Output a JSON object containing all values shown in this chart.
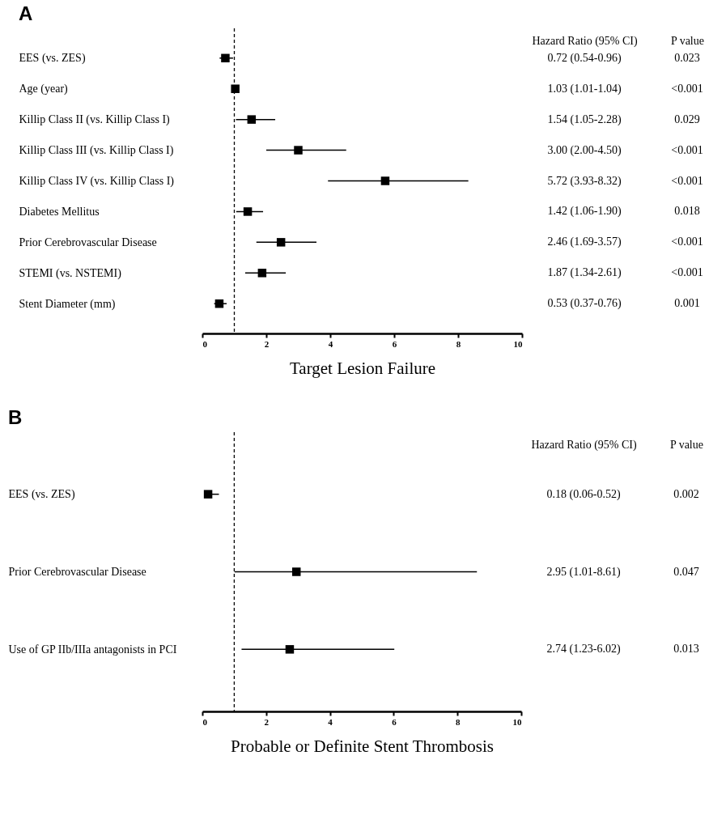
{
  "chart_data": [
    {
      "type": "scatter",
      "orientation": "horizontal",
      "title": "A",
      "xlabel": "Target Lesion Failure",
      "marker": "square",
      "grid": false,
      "categories": [
        "EES (vs. ZES)",
        "Age (year)",
        "Killip Class II (vs. Killip Class I)",
        "Killip Class III (vs. Killip Class I)",
        "Killip Class IV (vs. Killip Class I)",
        "Diabetes Mellitus",
        "Prior Cerebrovascular Disease",
        "STEMI (vs. NSTEMI)",
        "Stent Diameter (mm)"
      ],
      "series": [
        {
          "color": "#000000",
          "values": [
            0.72,
            1.03,
            1.54,
            3.0,
            5.72,
            1.42,
            2.46,
            1.87,
            0.53
          ],
          "errors": [
            [
              0.54,
              0.96
            ],
            null,
            [
              1.05,
              2.28
            ],
            [
              2.0,
              4.5
            ],
            [
              3.93,
              8.32
            ],
            [
              1.06,
              1.9
            ],
            [
              1.69,
              3.57
            ],
            [
              1.34,
              2.61
            ],
            [
              0.37,
              0.76
            ]
          ],
          "value_labels": [
            "0.72 (0.54-0.96)",
            "1.03 (1.01-1.04)",
            "1.54 (1.05-2.28)",
            "3.00 (2.00-4.50)",
            "5.72 (3.93-8.32)",
            "1.42 (1.06-1.90)",
            "2.46 (1.69-3.57)",
            "1.87 (1.34-2.61)",
            "0.53 (0.37-0.76)"
          ]
        }
      ],
      "xlim": [
        0,
        10
      ],
      "xticks": [
        0,
        2,
        4,
        6,
        8,
        10
      ],
      "ref_lines": [
        {
          "axis": "x",
          "value": 1,
          "color": "#000000",
          "line_style": "dashed"
        }
      ],
      "annotations": [
        "Hazard Ratio (95% CI)",
        "P value",
        "0.023",
        "<0.001",
        "0.029",
        "<0.001",
        "<0.001",
        "0.018",
        "<0.001",
        "<0.001",
        "0.001"
      ]
    },
    {
      "type": "scatter",
      "orientation": "horizontal",
      "title": "B",
      "xlabel": "Probable or Definite Stent Thrombosis",
      "marker": "square",
      "grid": false,
      "categories": [
        "EES (vs. ZES)",
        "Prior Cerebrovascular Disease",
        "Use of GP IIb/IIIa antagonists in PCI"
      ],
      "series": [
        {
          "color": "#000000",
          "values": [
            0.18,
            2.95,
            2.74
          ],
          "errors": [
            [
              0.06,
              0.52
            ],
            [
              1.01,
              8.61
            ],
            [
              1.23,
              6.02
            ]
          ],
          "value_labels": [
            "0.18 (0.06-0.52)",
            "2.95 (1.01-8.61)",
            "2.74 (1.23-6.02)"
          ]
        }
      ],
      "xlim": [
        0,
        10
      ],
      "xticks": [
        0,
        2,
        4,
        6,
        8,
        10
      ],
      "ref_lines": [
        {
          "axis": "x",
          "value": 1,
          "color": "#000000",
          "line_style": "dashed"
        }
      ],
      "annotations": [
        "Hazard Ratio (95% CI)",
        "P value",
        "0.002",
        "0.047",
        "0.013"
      ]
    }
  ]
}
